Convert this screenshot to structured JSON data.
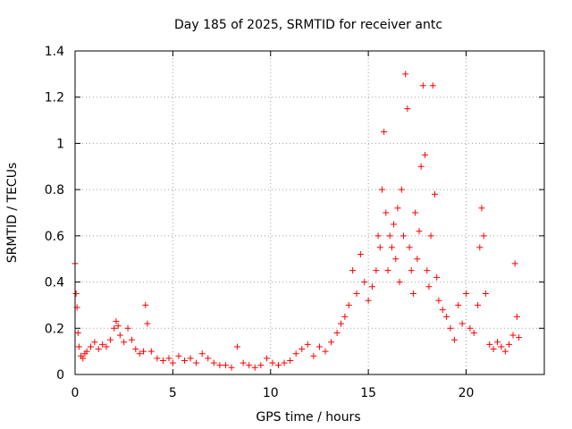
{
  "chart_data": {
    "type": "scatter",
    "title": "Day 185 of 2025, SRMTID for receiver antc",
    "xlabel": "GPS time / hours",
    "ylabel": "SRMTID / TECUs",
    "xlim": [
      0,
      24
    ],
    "ylim": [
      0,
      1.4
    ],
    "xticks": [
      0,
      5,
      10,
      15,
      20
    ],
    "xtick_labels": [
      "0",
      "5",
      "10",
      "15",
      "20"
    ],
    "yticks": [
      0,
      0.2,
      0.4,
      0.6,
      0.8,
      1,
      1.2,
      1.4
    ],
    "ytick_labels": [
      "0",
      "0.2",
      "0.4",
      "0.6",
      "0.8",
      "1",
      "1.2",
      "1.4"
    ],
    "grid": true,
    "marker": "plus",
    "color": "#ff0000",
    "series": [
      {
        "name": "SRMTID",
        "x": [
          0.0,
          0.05,
          0.1,
          0.15,
          0.2,
          0.3,
          0.4,
          0.5,
          0.6,
          0.8,
          1.0,
          1.2,
          1.4,
          1.6,
          1.8,
          2.0,
          2.1,
          2.2,
          2.3,
          2.5,
          2.7,
          2.9,
          3.1,
          3.3,
          3.5,
          3.6,
          3.7,
          3.9,
          4.2,
          4.5,
          4.8,
          5.0,
          5.3,
          5.6,
          5.9,
          6.2,
          6.5,
          6.8,
          7.1,
          7.4,
          7.7,
          8.0,
          8.3,
          8.6,
          8.9,
          9.2,
          9.5,
          9.8,
          10.1,
          10.4,
          10.7,
          11.0,
          11.3,
          11.6,
          11.9,
          12.2,
          12.5,
          12.8,
          13.1,
          13.4,
          13.6,
          13.8,
          14.0,
          14.2,
          14.4,
          14.6,
          14.8,
          15.0,
          15.2,
          15.4,
          15.5,
          15.6,
          15.7,
          15.8,
          15.9,
          16.0,
          16.1,
          16.2,
          16.3,
          16.4,
          16.5,
          16.6,
          16.7,
          16.8,
          16.9,
          17.0,
          17.1,
          17.2,
          17.3,
          17.4,
          17.5,
          17.6,
          17.7,
          17.8,
          17.9,
          18.0,
          18.1,
          18.2,
          18.3,
          18.4,
          18.5,
          18.6,
          18.8,
          19.0,
          19.2,
          19.4,
          19.6,
          19.8,
          20.0,
          20.2,
          20.4,
          20.6,
          20.7,
          20.8,
          20.9,
          21.0,
          21.2,
          21.4,
          21.6,
          21.8,
          22.0,
          22.2,
          22.4,
          22.5,
          22.6,
          22.7
        ],
        "y": [
          0.48,
          0.35,
          0.29,
          0.18,
          0.12,
          0.08,
          0.07,
          0.09,
          0.1,
          0.12,
          0.14,
          0.11,
          0.13,
          0.12,
          0.15,
          0.2,
          0.23,
          0.21,
          0.17,
          0.14,
          0.2,
          0.15,
          0.11,
          0.09,
          0.1,
          0.3,
          0.22,
          0.1,
          0.07,
          0.06,
          0.07,
          0.05,
          0.08,
          0.06,
          0.07,
          0.05,
          0.09,
          0.07,
          0.05,
          0.04,
          0.04,
          0.03,
          0.12,
          0.05,
          0.04,
          0.03,
          0.04,
          0.07,
          0.05,
          0.04,
          0.05,
          0.06,
          0.09,
          0.11,
          0.13,
          0.08,
          0.12,
          0.1,
          0.14,
          0.18,
          0.22,
          0.25,
          0.3,
          0.45,
          0.35,
          0.52,
          0.4,
          0.32,
          0.38,
          0.45,
          0.6,
          0.55,
          0.8,
          1.05,
          0.7,
          0.45,
          0.6,
          0.55,
          0.65,
          0.5,
          0.72,
          0.4,
          0.8,
          0.6,
          1.3,
          1.15,
          0.55,
          0.45,
          0.35,
          0.7,
          0.5,
          0.62,
          0.9,
          1.25,
          0.95,
          0.45,
          0.38,
          0.6,
          1.25,
          0.78,
          0.42,
          0.32,
          0.28,
          0.25,
          0.2,
          0.15,
          0.3,
          0.22,
          0.35,
          0.2,
          0.18,
          0.3,
          0.55,
          0.72,
          0.6,
          0.35,
          0.13,
          0.11,
          0.14,
          0.12,
          0.1,
          0.13,
          0.17,
          0.48,
          0.25,
          0.16
        ]
      }
    ]
  }
}
